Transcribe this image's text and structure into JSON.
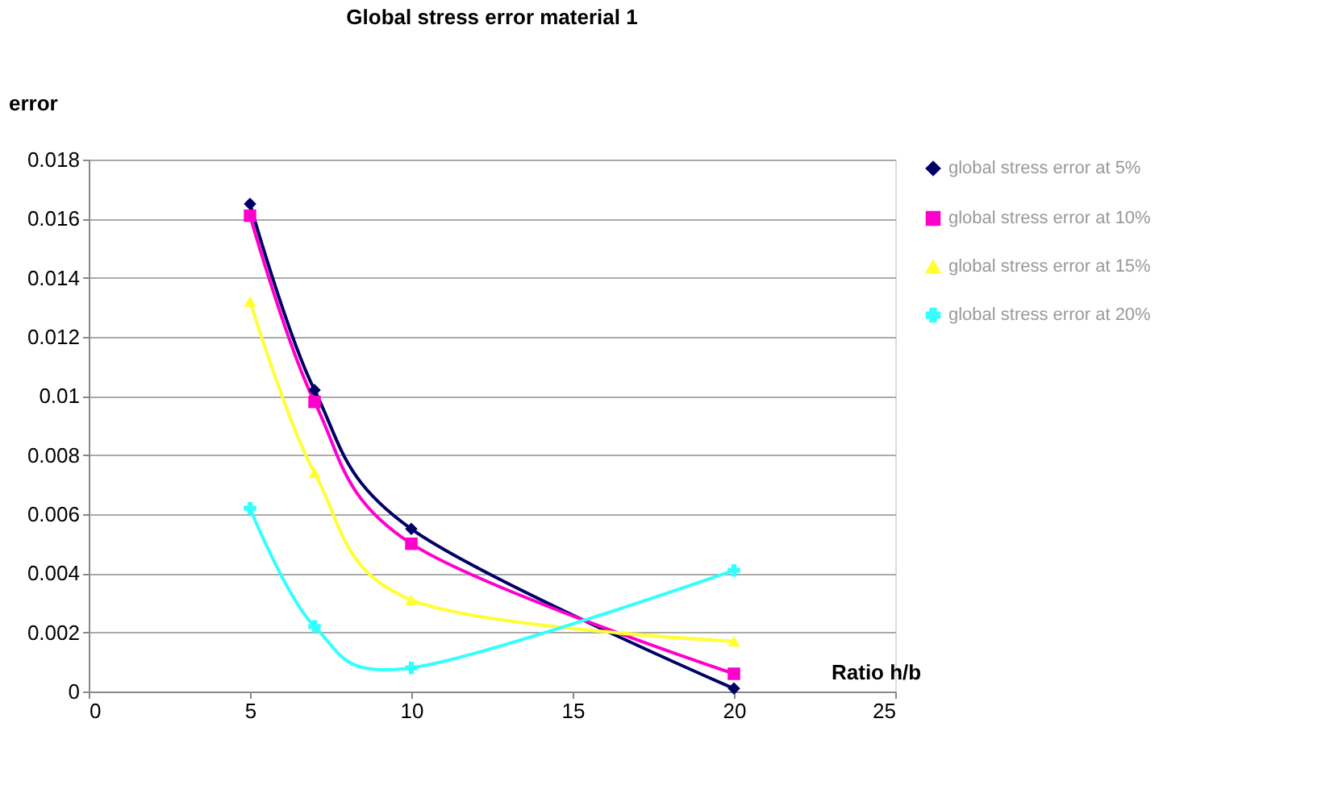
{
  "chart_data": {
    "type": "line",
    "title": "Global stress error material 1",
    "xlabel": "Ratio h/b",
    "ylabel": "error",
    "x": [
      5,
      7,
      10,
      20
    ],
    "series": [
      {
        "name": "global stress error at 5%",
        "color": "#000066",
        "marker": "diamond",
        "values": [
          0.0165,
          0.0102,
          0.0055,
          0.0001
        ]
      },
      {
        "name": "global stress error at 10%",
        "color": "#ff00cc",
        "marker": "square",
        "values": [
          0.0161,
          0.0098,
          0.005,
          0.0006
        ]
      },
      {
        "name": "global stress error at 15%",
        "color": "#ffff33",
        "marker": "triangle",
        "values": [
          0.0132,
          0.0074,
          0.0031,
          0.0017
        ]
      },
      {
        "name": "global stress error at 20%",
        "color": "#33ffff",
        "marker": "cross",
        "values": [
          0.0062,
          0.0022,
          0.0008,
          0.0041
        ]
      }
    ],
    "xlim": [
      0,
      25
    ],
    "xticks": [
      0,
      5,
      10,
      15,
      20,
      25
    ],
    "ylim": [
      0,
      0.018
    ],
    "yticks": [
      0,
      0.002,
      0.004,
      0.006,
      0.008,
      0.01,
      0.012,
      0.014,
      0.016,
      0.018
    ],
    "grid": "y",
    "legend": "right",
    "line_style": "solid"
  }
}
